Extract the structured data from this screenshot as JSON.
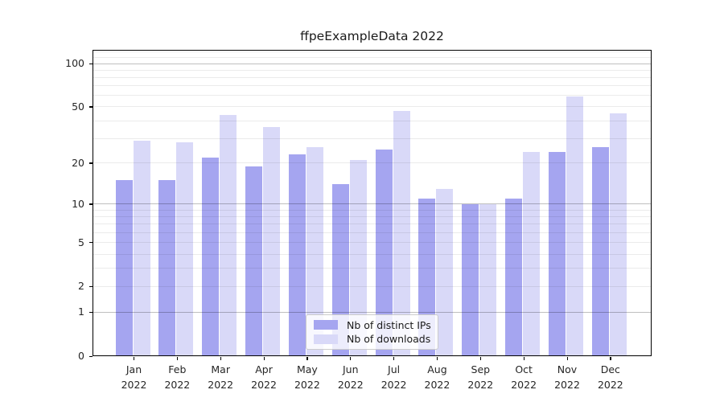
{
  "chart_data": {
    "type": "bar",
    "title": "ffpeExampleData 2022",
    "categories": [
      "Jan",
      "Feb",
      "Mar",
      "Apr",
      "May",
      "Jun",
      "Jul",
      "Aug",
      "Sep",
      "Oct",
      "Nov",
      "Dec"
    ],
    "category_year": "2022",
    "series": [
      {
        "name": "Nb of distinct IPs",
        "color": "#a5a5f0",
        "values": [
          15,
          15,
          22,
          19,
          23,
          14,
          25,
          11,
          10,
          11,
          24,
          26
        ]
      },
      {
        "name": "Nb of downloads",
        "color": "#d9d9f8",
        "values": [
          29,
          28,
          44,
          36,
          26,
          21,
          47,
          13,
          10,
          24,
          59,
          45
        ]
      }
    ],
    "xlabel": "",
    "ylabel": "",
    "y_scale": "log(1+x)",
    "ylim": [
      0,
      125
    ],
    "y_tick_values": [
      100,
      50,
      20,
      10,
      5,
      2,
      1,
      0
    ],
    "y_tick_labels": [
      "100",
      "50",
      "20",
      "10",
      "5",
      "2",
      "1",
      "0"
    ],
    "y_major_gridlines": [
      1,
      10,
      100
    ],
    "y_minor_gridlines": [
      2,
      3,
      4,
      5,
      6,
      7,
      8,
      9,
      20,
      30,
      40,
      50,
      60,
      70,
      80,
      90,
      110,
      120
    ],
    "grid": "horizontal on, drawn over bars",
    "legend": {
      "position": "lower center",
      "items": [
        "Nb of distinct IPs",
        "Nb of downloads"
      ]
    }
  },
  "colors": {
    "background": "#ffffff",
    "axis": "#000000",
    "title_text": "#1a1a1a",
    "tick_text": "#262626",
    "grid_major": "rgba(0,0,0,0.25)",
    "grid_minor": "rgba(0,0,0,0.08)",
    "legend_border": "#cccccc",
    "legend_background": "rgba(255,255,255,0.8)"
  }
}
